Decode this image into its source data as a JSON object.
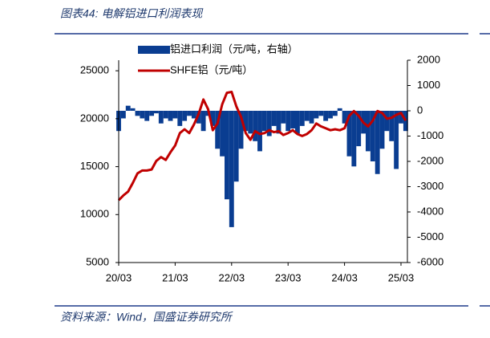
{
  "header": {
    "title": "图表44:  电解铝进口利润表现"
  },
  "footer": {
    "source": "资料来源：Wind，国盛证券研究所"
  },
  "chart_data": {
    "type": "combo",
    "categories": [
      "20/03",
      null,
      null,
      null,
      null,
      null,
      null,
      null,
      null,
      null,
      null,
      null,
      "21/03",
      null,
      null,
      null,
      null,
      null,
      null,
      null,
      null,
      null,
      null,
      null,
      "22/03",
      null,
      null,
      null,
      null,
      null,
      null,
      null,
      null,
      null,
      null,
      null,
      "23/03",
      null,
      null,
      null,
      null,
      null,
      null,
      null,
      null,
      null,
      null,
      null,
      "24/03",
      null,
      null,
      null,
      null,
      null,
      null,
      null,
      null,
      null,
      null,
      null,
      "25/03",
      null
    ],
    "series": [
      {
        "name": "铝进口利润（元/吨，右轴）",
        "type": "bar",
        "axis": "y2",
        "color": "#0a3d91",
        "values": [
          -800,
          -300,
          200,
          100,
          -200,
          -300,
          -400,
          -200,
          -100,
          -500,
          -300,
          -400,
          -300,
          -600,
          -400,
          -200,
          -300,
          -500,
          -800,
          -200,
          -600,
          -1500,
          -1800,
          -3500,
          -4600,
          -2800,
          -1500,
          -800,
          -900,
          -1200,
          -1600,
          -800,
          -1000,
          -600,
          -900,
          -500,
          -800,
          -700,
          -900,
          -600,
          -400,
          -500,
          -300,
          -200,
          -400,
          -300,
          -200,
          100,
          -500,
          -1800,
          -2200,
          -1400,
          -900,
          -1600,
          -2000,
          -2500,
          -1500,
          -800,
          -1200,
          -2300,
          -500,
          -800
        ]
      },
      {
        "name": "SHFE铝（元/吨）",
        "type": "line",
        "color": "#c00000",
        "values": [
          11500,
          12000,
          12400,
          13300,
          14300,
          14600,
          14600,
          14700,
          15600,
          16000,
          15700,
          16500,
          17200,
          18500,
          18900,
          18500,
          19400,
          20500,
          22000,
          21000,
          18800,
          19500,
          21500,
          22700,
          22800,
          21300,
          20200,
          18500,
          17800,
          18700,
          18400,
          18500,
          18800,
          18600,
          18700,
          18300,
          18500,
          18800,
          18400,
          18200,
          18400,
          18800,
          19500,
          19200,
          19000,
          18800,
          18900,
          18800,
          19000,
          20300,
          20800,
          20300,
          19600,
          19200,
          19800,
          20800,
          20600,
          20000,
          20100,
          20400,
          20600,
          19800
        ]
      }
    ],
    "ylim": [
      5000,
      26100
    ],
    "yticks": [
      5000,
      10000,
      15000,
      20000,
      25000
    ],
    "y2lim": [
      -6000,
      2000
    ],
    "y2ticks": [
      -6000,
      -5000,
      -4000,
      -3000,
      -2000,
      -1000,
      0,
      1000,
      2000
    ]
  }
}
